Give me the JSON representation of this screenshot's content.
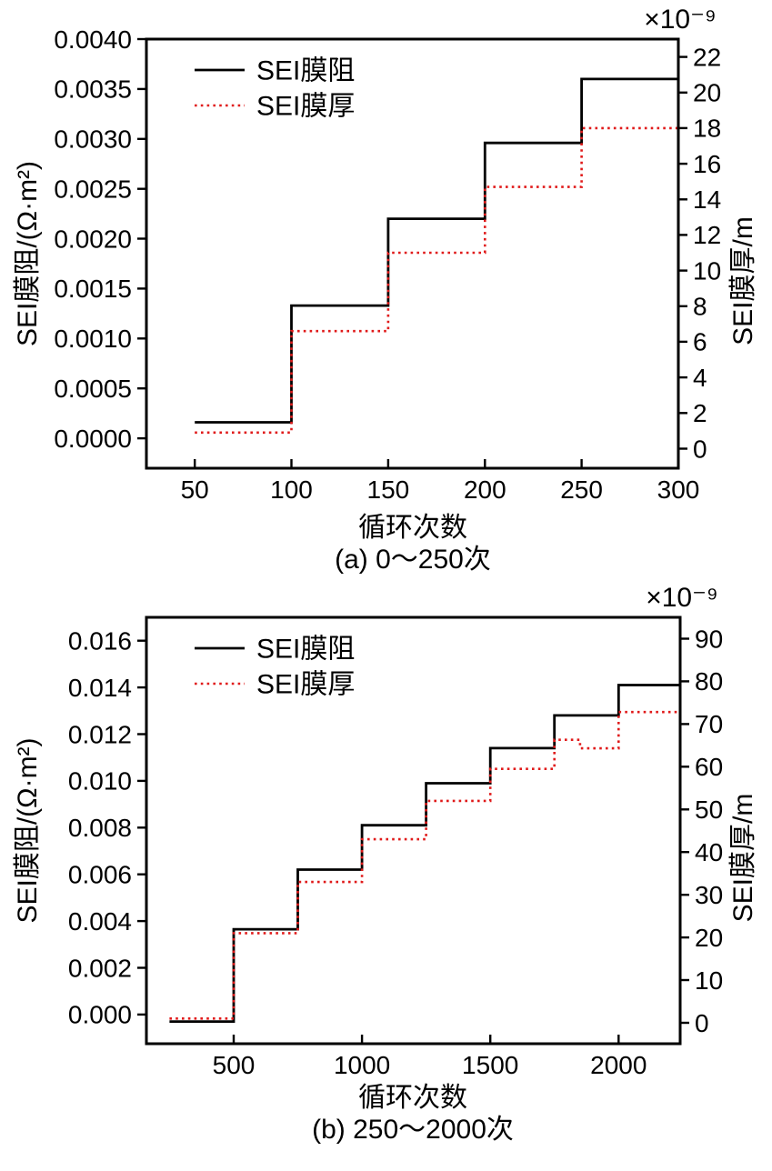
{
  "chart_data": [
    {
      "id": "a",
      "type": "line",
      "subtype": "step",
      "caption": "(a) 0～250次",
      "grid": false,
      "legend_position": "upper-left-inside",
      "x_axis": {
        "label": "循环次数",
        "range": [
          25,
          300
        ],
        "tick_values": [
          50,
          100,
          150,
          200,
          250,
          300
        ],
        "tick_labels": [
          "50",
          "100",
          "150",
          "200",
          "250",
          "300"
        ]
      },
      "left_axis": {
        "label": "SEI膜阻/(Ω·m²)",
        "range": [
          -0.0003,
          0.004
        ],
        "tick_values": [
          0,
          0.0005,
          0.001,
          0.0015,
          0.002,
          0.0025,
          0.003,
          0.0035,
          0.004
        ],
        "tick_labels": [
          "0.0000",
          "0.0005",
          "0.0010",
          "0.0015",
          "0.0020",
          "0.0025",
          "0.0030",
          "0.0035",
          "0.0040"
        ]
      },
      "right_axis": {
        "label": "SEI膜厚/m",
        "multiplier": "×10⁻⁹",
        "range": [
          -1.1,
          23
        ],
        "tick_values": [
          0,
          2,
          4,
          6,
          8,
          10,
          12,
          14,
          16,
          18,
          20,
          22
        ],
        "tick_labels": [
          "0",
          "2",
          "4",
          "6",
          "8",
          "10",
          "12",
          "14",
          "16",
          "18",
          "20",
          "22"
        ]
      },
      "series": [
        {
          "name": "SEI膜阻",
          "axis": "left",
          "color": "#000000",
          "line": "solid",
          "step_x": [
            50,
            100,
            150,
            200,
            250,
            300
          ],
          "values": [
            0.00016,
            0.00133,
            0.0022,
            0.00296,
            0.0036
          ]
        },
        {
          "name": "SEI膜厚",
          "axis": "right",
          "color": "#e01a1a",
          "line": "dotted",
          "step_x": [
            50,
            100,
            150,
            200,
            250,
            300
          ],
          "values": [
            0.9,
            6.6,
            11.0,
            14.7,
            18.0
          ]
        }
      ]
    },
    {
      "id": "b",
      "type": "line",
      "subtype": "step",
      "caption": "(b) 250～2000次",
      "grid": false,
      "legend_position": "upper-left-inside",
      "x_axis": {
        "label": "循环次数",
        "range": [
          160,
          2240
        ],
        "tick_values": [
          500,
          1000,
          1500,
          2000
        ],
        "tick_labels": [
          "500",
          "1000",
          "1500",
          "2000"
        ]
      },
      "left_axis": {
        "label": "SEI膜阻/(Ω·m²)",
        "range": [
          -0.00125,
          0.017
        ],
        "tick_values": [
          0,
          0.002,
          0.004,
          0.006,
          0.008,
          0.01,
          0.012,
          0.014,
          0.016
        ],
        "tick_labels": [
          "0.000",
          "0.002",
          "0.004",
          "0.006",
          "0.008",
          "0.010",
          "0.012",
          "0.014",
          "0.016"
        ]
      },
      "right_axis": {
        "label": "SEI膜厚/m",
        "multiplier": "×10⁻⁹",
        "range": [
          -4.9,
          95
        ],
        "tick_values": [
          0,
          10,
          20,
          30,
          40,
          50,
          60,
          70,
          80,
          90
        ],
        "tick_labels": [
          "0",
          "10",
          "20",
          "30",
          "40",
          "50",
          "60",
          "70",
          "80",
          "90"
        ]
      },
      "series": [
        {
          "name": "SEI膜阻",
          "axis": "left",
          "color": "#000000",
          "line": "solid",
          "step_x": [
            250,
            500,
            750,
            1000,
            1250,
            1500,
            1750,
            2000,
            2240
          ],
          "values": [
            -0.0003,
            0.00365,
            0.0062,
            0.0081,
            0.0099,
            0.0114,
            0.0128,
            0.0141
          ]
        },
        {
          "name": "SEI膜厚",
          "axis": "right",
          "color": "#e01a1a",
          "line": "dotted",
          "step_x": [
            250,
            500,
            750,
            1000,
            1250,
            1500,
            1750,
            1850,
            2000,
            2240
          ],
          "values": [
            1.0,
            21.0,
            33.0,
            43.0,
            52.0,
            59.5,
            66.3,
            64.3,
            72.8
          ]
        }
      ]
    }
  ]
}
